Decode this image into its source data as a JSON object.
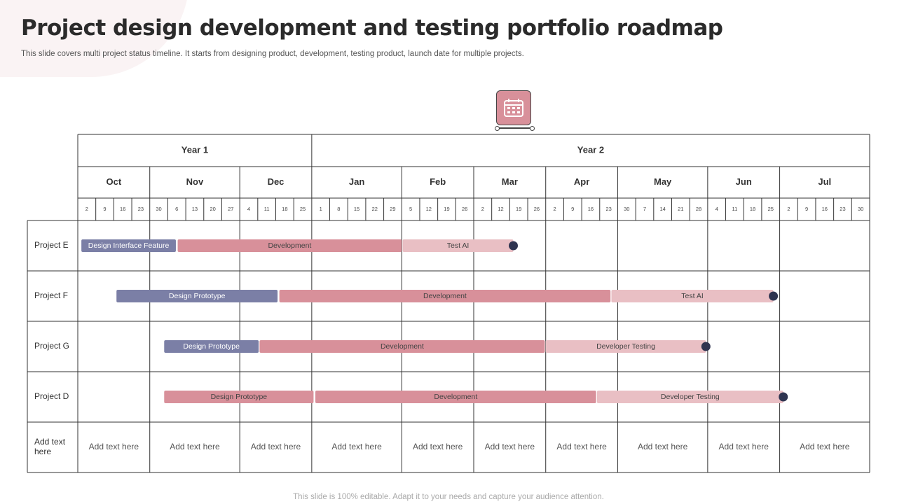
{
  "page": {
    "title": "Project design development and testing portfolio roadmap",
    "subtitle": "This slide covers multi project status timeline. It starts from designing product, development, testing product, launch date for multiple projects.",
    "footer": "This slide is 100% editable. Adapt it to your  needs and capture your audience attention."
  },
  "icons": {
    "header": "calendar-icon",
    "milestone": "milestone-dot"
  },
  "colors": {
    "design": "#7b7fa6",
    "development": "#d8909a",
    "testing": "#e9bfc4",
    "milestone": "#2f3450",
    "grid": "#333333",
    "icon_bg": "#d8909a"
  },
  "chart_data": {
    "type": "gantt",
    "years": [
      {
        "label": "Year 1",
        "months": [
          "Oct",
          "Nov",
          "Dec"
        ]
      },
      {
        "label": "Year 2",
        "months": [
          "Jan",
          "Feb",
          "Mar",
          "Apr",
          "May",
          "Jun",
          "Jul"
        ]
      }
    ],
    "months": [
      {
        "label": "Oct",
        "days": [
          "2",
          "9",
          "16",
          "23"
        ]
      },
      {
        "label": "Nov",
        "days": [
          "30",
          "6",
          "13",
          "20",
          "27"
        ]
      },
      {
        "label": "Dec",
        "days": [
          "4",
          "11",
          "18",
          "25"
        ]
      },
      {
        "label": "Jan",
        "days": [
          "1",
          "8",
          "15",
          "22",
          "29"
        ]
      },
      {
        "label": "Feb",
        "days": [
          "5",
          "12",
          "19",
          "26"
        ]
      },
      {
        "label": "Mar",
        "days": [
          "2",
          "12",
          "19",
          "26"
        ]
      },
      {
        "label": "Apr",
        "days": [
          "2",
          "9",
          "16",
          "23"
        ]
      },
      {
        "label": "May",
        "days": [
          "30",
          "7",
          "14",
          "21",
          "28"
        ]
      },
      {
        "label": "Jun",
        "days": [
          "4",
          "11",
          "18",
          "25"
        ]
      },
      {
        "label": "Jul",
        "days": [
          "2",
          "9",
          "16",
          "23",
          "30"
        ]
      }
    ],
    "rows": [
      {
        "project": "Project E",
        "tasks": [
          {
            "label": "Design Interface Feature",
            "phase": "design",
            "start_week": 0.2,
            "end_week": 5.45
          },
          {
            "label": "Development",
            "phase": "development",
            "start_week": 5.55,
            "end_week": 18.0
          },
          {
            "label": "Test AI",
            "phase": "testing",
            "start_week": 18.05,
            "end_week": 24.2
          }
        ],
        "milestone_week": 24.2
      },
      {
        "project": "Project F",
        "tasks": [
          {
            "label": "Design Prototype",
            "phase": "design",
            "start_week": 2.15,
            "end_week": 11.1
          },
          {
            "label": "Development",
            "phase": "development",
            "start_week": 11.2,
            "end_week": 29.6
          },
          {
            "label": "Test AI",
            "phase": "testing",
            "start_week": 29.65,
            "end_week": 38.65
          }
        ],
        "milestone_week": 38.65
      },
      {
        "project": "Project G",
        "tasks": [
          {
            "label": "Design Prototype",
            "phase": "design",
            "start_week": 4.8,
            "end_week": 10.05
          },
          {
            "label": "Development",
            "phase": "development",
            "start_week": 10.1,
            "end_week": 25.95
          },
          {
            "label": "Developer Testing",
            "phase": "testing",
            "start_week": 26.0,
            "end_week": 34.9
          }
        ],
        "milestone_week": 34.9
      },
      {
        "project": "Project D",
        "tasks": [
          {
            "label": "Design Prototype",
            "phase": "development",
            "start_week": 4.8,
            "end_week": 13.1
          },
          {
            "label": "Development",
            "phase": "development",
            "start_week": 13.2,
            "end_week": 28.8
          },
          {
            "label": "Developer Testing",
            "phase": "testing",
            "start_week": 28.85,
            "end_week": 39.2
          }
        ],
        "milestone_week": 39.2
      }
    ],
    "notes_row": {
      "label": "Add text here",
      "cells": [
        "Add text here",
        "Add text here",
        "Add text here",
        "Add text here",
        "Add text here",
        "Add text here",
        "Add text here",
        "Add text here",
        "Add text here",
        "Add text here"
      ]
    }
  }
}
